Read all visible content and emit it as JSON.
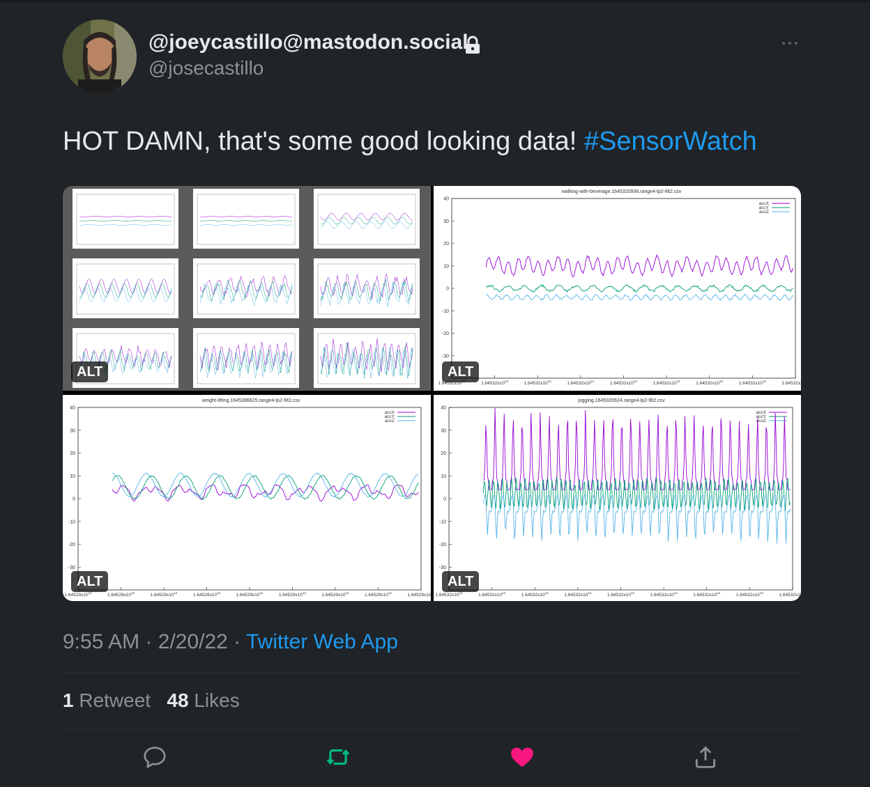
{
  "tweet": {
    "display_name": "@joeycastillo@mastodon.social",
    "handle": "@josecastillo",
    "text_plain": "HOT DAMN, that's some good looking data! ",
    "hashtag": "#SensorWatch",
    "time": "9:55 AM",
    "date": "2/20/22",
    "separator": "·",
    "source": "Twitter Web App",
    "retweets_count": "1",
    "retweets_label": "Retweet",
    "likes_count": "48",
    "likes_label": "Likes"
  },
  "media": {
    "alt_badge": "ALT",
    "walking": {
      "title": "walking-with-beverage.1645320936.range4-lp2-filt2.csv",
      "x_tick_label": "1.64532x10",
      "exponent": "12",
      "yticks": [
        "40",
        "30",
        "20",
        "10",
        "0",
        "-10",
        "-20",
        "-30"
      ],
      "legend": [
        "accX",
        "accY",
        "accZ"
      ]
    },
    "weight": {
      "title": "weight-lifting.1645286625.range4-lp2-filt2.csv",
      "x_tick_label": "1.64529x10",
      "exponent": "12",
      "yticks": [
        "40",
        "30",
        "20",
        "10",
        "0",
        "-10",
        "-20",
        "-30"
      ],
      "legend": [
        "accX",
        "accY",
        "accZ"
      ]
    },
    "jogging": {
      "title": "jogging.1645320624.range4-lp2-filt2.csv",
      "x_tick_label": "1.64532x10",
      "exponent": "12",
      "yticks": [
        "40",
        "30",
        "20",
        "10",
        "0",
        "-10",
        "-20",
        "-30"
      ],
      "legend": [
        "accX",
        "accY",
        "accZ"
      ]
    }
  },
  "colors": {
    "accent": "#1d9bf0",
    "like": "#f91880",
    "retweet": "#00ba7c",
    "accX": "#9400d3",
    "accY": "#009e73",
    "accZ": "#56b4e9"
  },
  "icons": [
    "lock-icon",
    "more-icon",
    "reply-icon",
    "retweet-icon",
    "like-icon",
    "share-icon"
  ]
}
